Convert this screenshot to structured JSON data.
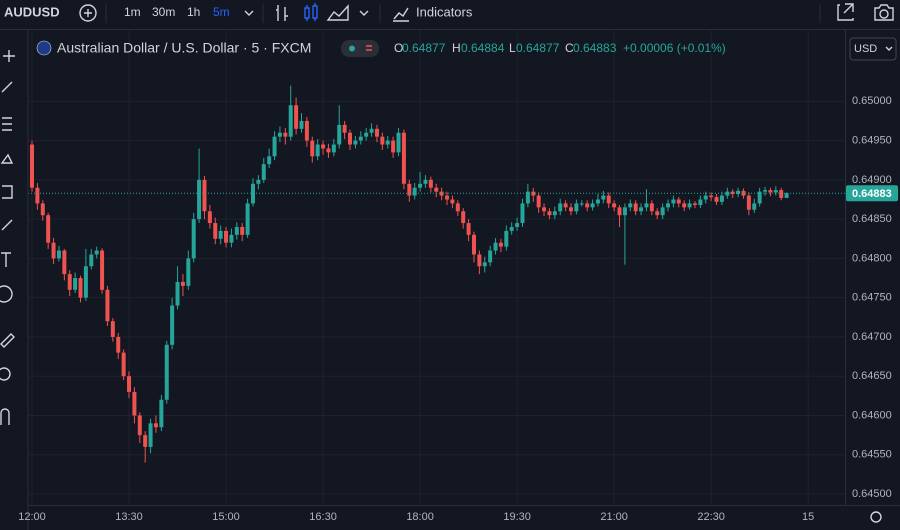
{
  "toolbar": {
    "symbol": "AUDUSD",
    "intervals": [
      "1m",
      "30m",
      "1h",
      "5m"
    ],
    "indicators": "Indicators",
    "currency": "USD"
  },
  "chart_data": {
    "type": "candlestick",
    "title": "Australian Dollar / U.S. Dollar · 5 · FXCM",
    "ohlc_letters": [
      "O",
      "H",
      "L",
      "C"
    ],
    "change": "+0.00006 (+0.01%)",
    "up_color": "#26a69a",
    "down_color": "#ef5350",
    "grid": true,
    "x": [
      "12:00",
      "12:05",
      "12:10",
      "12:15",
      "12:20",
      "12:25",
      "12:30",
      "12:35",
      "12:40",
      "12:45",
      "12:50",
      "12:55",
      "13:00",
      "13:05",
      "13:10",
      "13:15",
      "13:20",
      "13:25",
      "13:30",
      "13:35",
      "13:40",
      "13:45",
      "13:50",
      "13:55",
      "14:00",
      "14:05",
      "14:10",
      "14:15",
      "14:20",
      "14:25",
      "14:30",
      "14:35",
      "14:40",
      "14:45",
      "14:50",
      "14:55",
      "15:00",
      "15:05",
      "15:10",
      "15:15",
      "15:20",
      "15:25",
      "15:30",
      "15:35",
      "15:40",
      "15:45",
      "15:50",
      "15:55",
      "16:00",
      "16:05",
      "16:10",
      "16:15",
      "16:20",
      "16:25",
      "16:30",
      "16:35",
      "16:40",
      "16:45",
      "16:50",
      "16:55",
      "17:00",
      "17:05",
      "17:10",
      "17:15",
      "17:20",
      "17:25",
      "17:30",
      "17:35",
      "17:40",
      "17:45",
      "17:50",
      "17:55",
      "18:00",
      "18:05",
      "18:10",
      "18:15",
      "18:20",
      "18:25",
      "18:30",
      "18:35",
      "18:40",
      "18:45",
      "18:50",
      "18:55",
      "19:00",
      "19:05",
      "19:10",
      "19:15",
      "19:20",
      "19:25",
      "19:30",
      "19:35",
      "19:40",
      "19:45",
      "19:50",
      "19:55",
      "20:00",
      "20:05",
      "20:10",
      "20:15",
      "20:20",
      "20:25",
      "20:30",
      "20:35",
      "20:40",
      "20:45",
      "20:50",
      "20:55",
      "21:00",
      "21:05",
      "21:10",
      "21:15",
      "21:20",
      "21:25",
      "21:30",
      "21:35",
      "21:40",
      "21:45",
      "21:50",
      "21:55",
      "22:00",
      "22:05",
      "22:10",
      "22:15",
      "22:20",
      "22:25",
      "22:30",
      "22:35",
      "22:40",
      "22:45",
      "22:50",
      "22:55",
      "23:00",
      "23:05",
      "23:10",
      "23:15",
      "23:20",
      "23:25",
      "23:30",
      "23:35",
      "23:40"
    ],
    "open": [
      0.64945,
      0.6489,
      0.6487,
      0.64855,
      0.6482,
      0.648,
      0.6481,
      0.6478,
      0.6476,
      0.64775,
      0.6475,
      0.6479,
      0.64805,
      0.6481,
      0.6476,
      0.6472,
      0.647,
      0.6468,
      0.6465,
      0.6463,
      0.646,
      0.64575,
      0.6456,
      0.6459,
      0.64585,
      0.6462,
      0.6469,
      0.6474,
      0.6477,
      0.64765,
      0.648,
      0.6485,
      0.649,
      0.6486,
      0.64845,
      0.64825,
      0.64835,
      0.6482,
      0.6483,
      0.6484,
      0.6483,
      0.6487,
      0.64895,
      0.649,
      0.6492,
      0.6493,
      0.64955,
      0.6496,
      0.64955,
      0.64995,
      0.64965,
      0.64975,
      0.6495,
      0.6493,
      0.64945,
      0.6494,
      0.64935,
      0.64945,
      0.6497,
      0.6496,
      0.64945,
      0.6495,
      0.64955,
      0.6496,
      0.64965,
      0.64955,
      0.64945,
      0.6495,
      0.64935,
      0.6496,
      0.64895,
      0.6488,
      0.6489,
      0.64895,
      0.649,
      0.6489,
      0.64885,
      0.6488,
      0.64875,
      0.6487,
      0.6486,
      0.64845,
      0.6483,
      0.64805,
      0.6479,
      0.64795,
      0.6481,
      0.6482,
      0.64815,
      0.64835,
      0.6484,
      0.64845,
      0.6487,
      0.64885,
      0.6488,
      0.64865,
      0.6486,
      0.64855,
      0.6486,
      0.6487,
      0.64865,
      0.6486,
      0.6487,
      0.6487,
      0.64865,
      0.6487,
      0.64875,
      0.6488,
      0.6487,
      0.64865,
      0.64855,
      0.64865,
      0.6487,
      0.6486,
      0.64865,
      0.6487,
      0.6486,
      0.64855,
      0.64865,
      0.6487,
      0.64875,
      0.6487,
      0.64865,
      0.6487,
      0.64868,
      0.64875,
      0.6488,
      0.64878,
      0.64872,
      0.6488,
      0.64885,
      0.64882,
      0.64886,
      0.6488,
      0.64862,
      0.6487,
      0.64885,
      0.64887,
      0.64884,
      0.64887,
      0.64877
    ],
    "high": [
      0.6495,
      0.64896,
      0.64874,
      0.64858,
      0.64826,
      0.64816,
      0.64812,
      0.64785,
      0.64782,
      0.64778,
      0.64812,
      0.64812,
      0.64815,
      0.64813,
      0.64765,
      0.64724,
      0.64705,
      0.64684,
      0.64656,
      0.64636,
      0.64604,
      0.6458,
      0.64596,
      0.646,
      0.64626,
      0.64695,
      0.6475,
      0.6479,
      0.6478,
      0.6481,
      0.64858,
      0.6494,
      0.64905,
      0.64868,
      0.64852,
      0.64842,
      0.6484,
      0.64838,
      0.64846,
      0.64845,
      0.64876,
      0.64902,
      0.64906,
      0.64928,
      0.6494,
      0.64962,
      0.64968,
      0.64966,
      0.6502,
      0.65005,
      0.64985,
      0.6498,
      0.64955,
      0.64952,
      0.6495,
      0.64946,
      0.64952,
      0.64995,
      0.64975,
      0.64964,
      0.64956,
      0.64962,
      0.64966,
      0.64972,
      0.6497,
      0.6496,
      0.64956,
      0.64955,
      0.64966,
      0.64964,
      0.649,
      0.64896,
      0.6491,
      0.64906,
      0.64904,
      0.64895,
      0.6489,
      0.64885,
      0.6488,
      0.64874,
      0.64864,
      0.6485,
      0.64834,
      0.6481,
      0.64802,
      0.64816,
      0.64826,
      0.64825,
      0.64842,
      0.64846,
      0.64852,
      0.64876,
      0.64895,
      0.6489,
      0.64884,
      0.6487,
      0.64864,
      0.64866,
      0.64876,
      0.64874,
      0.6487,
      0.64875,
      0.64874,
      0.64874,
      0.64875,
      0.64882,
      0.64886,
      0.64884,
      0.64874,
      0.64868,
      0.6487,
      0.64875,
      0.64874,
      0.6487,
      0.64888,
      0.64874,
      0.64864,
      0.6487,
      0.64875,
      0.6488,
      0.64878,
      0.64874,
      0.64875,
      0.64873,
      0.6488,
      0.64885,
      0.64884,
      0.64882,
      0.64885,
      0.6489,
      0.64888,
      0.6489,
      0.64889,
      0.64884,
      0.64876,
      0.6489,
      0.64891,
      0.6489,
      0.64892,
      0.6489,
      0.64884
    ],
    "low": [
      0.64885,
      0.64862,
      0.64848,
      0.64812,
      0.64793,
      0.64796,
      0.64772,
      0.64752,
      0.64756,
      0.64744,
      0.64746,
      0.64786,
      0.648,
      0.64755,
      0.64714,
      0.64694,
      0.64672,
      0.64645,
      0.64622,
      0.6459,
      0.64565,
      0.6454,
      0.64552,
      0.64578,
      0.6458,
      0.64615,
      0.64684,
      0.64735,
      0.64752,
      0.6476,
      0.64795,
      0.64845,
      0.6485,
      0.64838,
      0.64818,
      0.64818,
      0.64814,
      0.64814,
      0.64824,
      0.64822,
      0.64826,
      0.64866,
      0.64888,
      0.64896,
      0.64915,
      0.64925,
      0.64948,
      0.64945,
      0.6495,
      0.64958,
      0.6496,
      0.64942,
      0.64922,
      0.64925,
      0.64932,
      0.64928,
      0.6493,
      0.6494,
      0.64952,
      0.64938,
      0.6494,
      0.64945,
      0.6495,
      0.64955,
      0.64948,
      0.64938,
      0.6494,
      0.64928,
      0.6493,
      0.64888,
      0.64872,
      0.64875,
      0.64885,
      0.6489,
      0.64884,
      0.64878,
      0.64874,
      0.64868,
      0.64864,
      0.64854,
      0.64838,
      0.64822,
      0.64795,
      0.6478,
      0.64782,
      0.6479,
      0.64805,
      0.64808,
      0.6481,
      0.6483,
      0.64835,
      0.6484,
      0.64865,
      0.64872,
      0.64858,
      0.64854,
      0.6485,
      0.6485,
      0.64855,
      0.6486,
      0.64855,
      0.64856,
      0.64866,
      0.6486,
      0.64861,
      0.64866,
      0.6487,
      0.64864,
      0.6486,
      0.6484,
      0.64792,
      0.6486,
      0.64855,
      0.64855,
      0.6486,
      0.64855,
      0.6485,
      0.6485,
      0.6486,
      0.64865,
      0.64865,
      0.6486,
      0.64862,
      0.64864,
      0.64864,
      0.6487,
      0.64873,
      0.64868,
      0.64868,
      0.64876,
      0.64877,
      0.64878,
      0.64876,
      0.64855,
      0.64858,
      0.64866,
      0.6488,
      0.64879,
      0.6488,
      0.64874,
      0.64877
    ],
    "close": [
      0.6489,
      0.6487,
      0.64855,
      0.6482,
      0.648,
      0.6481,
      0.6478,
      0.6476,
      0.64775,
      0.6475,
      0.6479,
      0.64805,
      0.6481,
      0.6476,
      0.6472,
      0.647,
      0.6468,
      0.6465,
      0.6463,
      0.646,
      0.64575,
      0.6456,
      0.6459,
      0.64585,
      0.6462,
      0.6469,
      0.6474,
      0.6477,
      0.64765,
      0.648,
      0.6485,
      0.649,
      0.6486,
      0.64845,
      0.64825,
      0.64835,
      0.6482,
      0.6483,
      0.6484,
      0.6483,
      0.6487,
      0.64895,
      0.649,
      0.6492,
      0.6493,
      0.64955,
      0.6496,
      0.64955,
      0.64995,
      0.64965,
      0.64975,
      0.6495,
      0.6493,
      0.64945,
      0.6494,
      0.64935,
      0.64945,
      0.6497,
      0.6496,
      0.64945,
      0.6495,
      0.64955,
      0.6496,
      0.64965,
      0.64955,
      0.64945,
      0.6495,
      0.64935,
      0.6496,
      0.64895,
      0.6488,
      0.6489,
      0.64895,
      0.649,
      0.6489,
      0.64885,
      0.6488,
      0.64875,
      0.6487,
      0.6486,
      0.64845,
      0.6483,
      0.64805,
      0.6479,
      0.64795,
      0.6481,
      0.6482,
      0.64815,
      0.64835,
      0.6484,
      0.64845,
      0.6487,
      0.64885,
      0.6488,
      0.64865,
      0.6486,
      0.64855,
      0.6486,
      0.6487,
      0.64865,
      0.6486,
      0.6487,
      0.6487,
      0.64865,
      0.6487,
      0.64875,
      0.6488,
      0.6487,
      0.64865,
      0.64855,
      0.64865,
      0.6487,
      0.6486,
      0.64865,
      0.6487,
      0.6486,
      0.64855,
      0.64865,
      0.6487,
      0.64875,
      0.6487,
      0.64865,
      0.6487,
      0.64868,
      0.64875,
      0.6488,
      0.64878,
      0.64872,
      0.6488,
      0.64885,
      0.64882,
      0.64886,
      0.6488,
      0.64862,
      0.6487,
      0.64885,
      0.64887,
      0.64884,
      0.64887,
      0.64877,
      0.64883
    ],
    "ylim": [
      0.64486,
      0.65087
    ],
    "yticks": [
      {
        "value": 0.645,
        "label": "0.64500"
      },
      {
        "value": 0.6455,
        "label": "0.64550"
      },
      {
        "value": 0.646,
        "label": "0.64600"
      },
      {
        "value": 0.6465,
        "label": "0.64650"
      },
      {
        "value": 0.647,
        "label": "0.64700"
      },
      {
        "value": 0.6475,
        "label": "0.64750"
      },
      {
        "value": 0.648,
        "label": "0.64800"
      },
      {
        "value": 0.6485,
        "label": "0.64850"
      },
      {
        "value": 0.649,
        "label": "0.64900"
      },
      {
        "value": 0.6495,
        "label": "0.64950"
      },
      {
        "value": 0.65,
        "label": "0.65000"
      }
    ],
    "xticks": [
      "12:00",
      "13:30",
      "15:00",
      "16:30",
      "18:00",
      "19:30",
      "21:00",
      "22:30"
    ],
    "next_day_label": "15"
  }
}
